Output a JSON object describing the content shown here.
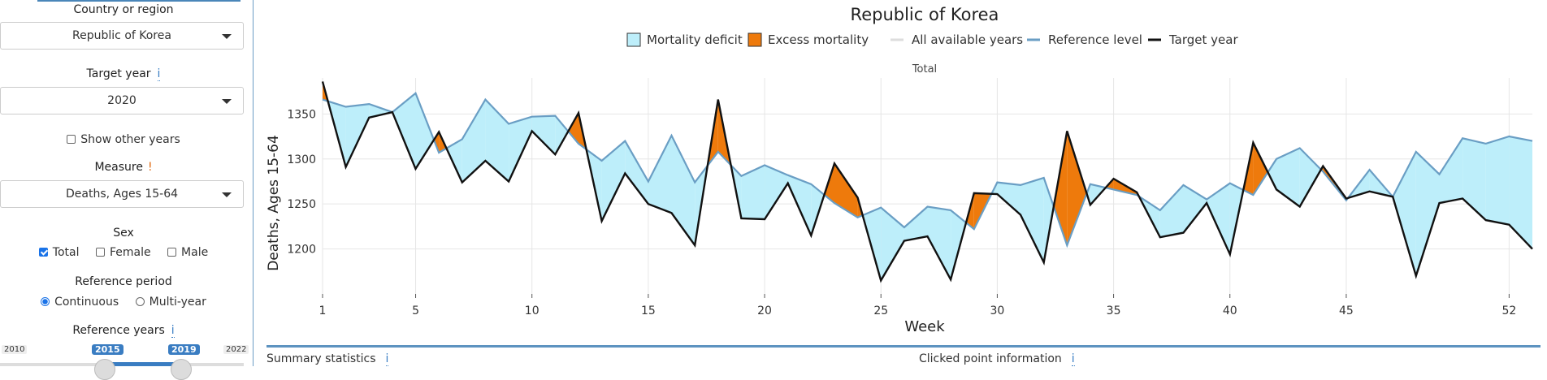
{
  "sidebar": {
    "country_label": "Country or region",
    "country_value": "Republic of Korea",
    "target_year_label": "Target year",
    "target_year_info": "i",
    "target_year_value": "2020",
    "show_other_years": "Show other years",
    "measure_label": "Measure",
    "measure_warn": "!",
    "measure_value": "Deaths, Ages 15-64",
    "sex_label": "Sex",
    "sex_total": "Total",
    "sex_female": "Female",
    "sex_male": "Male",
    "ref_period_label": "Reference period",
    "ref_continuous": "Continuous",
    "ref_multiyear": "Multi-year",
    "ref_years_label": "Reference years",
    "ref_years_info": "i",
    "slider_min": "2010",
    "slider_from": "2015",
    "slider_to": "2019",
    "slider_max": "2022"
  },
  "bottom": {
    "summary_label": "Summary statistics",
    "summary_info": "i",
    "clicked_label": "Clicked point information",
    "clicked_info": "i"
  },
  "colors": {
    "deficit_fill": "#bdeefa",
    "excess_fill": "#ee7a0c",
    "reference_line": "#6a9ec4",
    "target_line": "#111111",
    "all_years_line": "#dddddd"
  },
  "chart_data": {
    "type": "line",
    "title": "Republic of Korea",
    "subtitle": "Total",
    "xlabel": "Week",
    "ylabel": "Deaths, Ages 15-64",
    "xlim": [
      1,
      53
    ],
    "ylim": [
      1150,
      1390
    ],
    "x_ticks": [
      1,
      5,
      10,
      15,
      20,
      25,
      30,
      35,
      40,
      45,
      52
    ],
    "y_ticks": [
      1200,
      1250,
      1300,
      1350
    ],
    "legend": [
      "Mortality deficit",
      "Excess mortality",
      "All available years",
      "Reference level",
      "Target year"
    ],
    "legend_placement": "top",
    "grid": true,
    "x": [
      1,
      2,
      3,
      4,
      5,
      6,
      7,
      8,
      9,
      10,
      11,
      12,
      13,
      14,
      15,
      16,
      17,
      18,
      19,
      20,
      21,
      22,
      23,
      24,
      25,
      26,
      27,
      28,
      29,
      30,
      31,
      32,
      33,
      34,
      35,
      36,
      37,
      38,
      39,
      40,
      41,
      42,
      43,
      44,
      45,
      46,
      47,
      48,
      49,
      50,
      51,
      52,
      53
    ],
    "series": [
      {
        "name": "Reference level",
        "values": [
          1366,
          1358,
          1361,
          1352,
          1373,
          1307,
          1322,
          1366,
          1339,
          1347,
          1348,
          1317,
          1298,
          1320,
          1275,
          1326,
          1274,
          1308,
          1281,
          1293,
          1282,
          1272,
          1251,
          1235,
          1246,
          1224,
          1247,
          1243,
          1222,
          1274,
          1271,
          1279,
          1204,
          1272,
          1266,
          1260,
          1243,
          1271,
          1255,
          1273,
          1260,
          1300,
          1312,
          1286,
          1254,
          1288,
          1258,
          1308,
          1283,
          1323,
          1317,
          1325,
          1320
        ]
      },
      {
        "name": "Target year",
        "values": [
          1386,
          1291,
          1346,
          1352,
          1289,
          1330,
          1274,
          1298,
          1275,
          1331,
          1305,
          1351,
          1231,
          1284,
          1250,
          1240,
          1204,
          1366,
          1234,
          1233,
          1273,
          1215,
          1295,
          1257,
          1165,
          1209,
          1214,
          1166,
          1262,
          1261,
          1238,
          1185,
          1331,
          1249,
          1278,
          1263,
          1213,
          1218,
          1251,
          1194,
          1318,
          1266,
          1247,
          1292,
          1256,
          1264,
          1258,
          1170,
          1251,
          1256,
          1232,
          1227,
          1200
        ]
      }
    ]
  }
}
